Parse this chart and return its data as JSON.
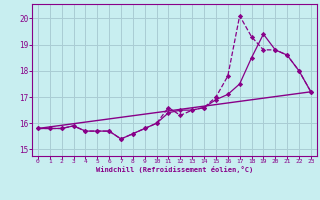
{
  "bg_color": "#c8eef0",
  "grid_color": "#aaccd4",
  "line_color": "#880088",
  "xlabel": "Windchill (Refroidissement éolien,°C)",
  "xlim": [
    -0.5,
    23.5
  ],
  "ylim": [
    14.75,
    20.55
  ],
  "yticks": [
    15,
    16,
    17,
    18,
    19,
    20
  ],
  "xticks": [
    0,
    1,
    2,
    3,
    4,
    5,
    6,
    7,
    8,
    9,
    10,
    11,
    12,
    13,
    14,
    15,
    16,
    17,
    18,
    19,
    20,
    21,
    22,
    23
  ],
  "series1_x": [
    0,
    1,
    2,
    3,
    4,
    5,
    6,
    7,
    8,
    9,
    10,
    11,
    12,
    13,
    14,
    15,
    16,
    17,
    18,
    19,
    20,
    21,
    22,
    23
  ],
  "series1_y": [
    15.8,
    15.8,
    15.8,
    15.9,
    15.7,
    15.7,
    15.7,
    15.4,
    15.6,
    15.8,
    16.0,
    16.6,
    16.3,
    16.5,
    16.6,
    17.0,
    17.8,
    20.1,
    19.3,
    18.8,
    18.8,
    18.6,
    18.0,
    17.2
  ],
  "series2_x": [
    0,
    1,
    2,
    3,
    4,
    5,
    6,
    7,
    8,
    9,
    10,
    11,
    12,
    13,
    14,
    15,
    16,
    17,
    18,
    19,
    20,
    21,
    22,
    23
  ],
  "series2_y": [
    15.8,
    15.8,
    15.8,
    15.9,
    15.7,
    15.7,
    15.7,
    15.4,
    15.6,
    15.8,
    16.0,
    16.4,
    16.5,
    16.5,
    16.6,
    16.9,
    17.1,
    17.5,
    18.5,
    19.4,
    18.8,
    18.6,
    18.0,
    17.2
  ],
  "series3_x": [
    0,
    23
  ],
  "series3_y": [
    15.8,
    17.2
  ]
}
